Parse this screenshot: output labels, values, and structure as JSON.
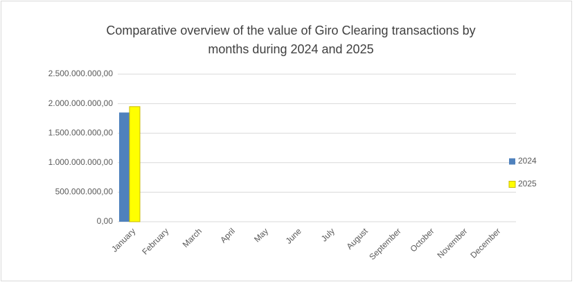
{
  "chart_data": {
    "type": "bar",
    "title": [
      "Comparative overview of the value of Giro Clearing transactions by",
      "months during 2024 and 2025"
    ],
    "categories": [
      "January",
      "February",
      "March",
      "April",
      "May",
      "June",
      "July",
      "August",
      "September",
      "October",
      "November",
      "December"
    ],
    "series": [
      {
        "name": "2024",
        "color": "#4f81bd",
        "values": [
          1850000000,
          null,
          null,
          null,
          null,
          null,
          null,
          null,
          null,
          null,
          null,
          null
        ]
      },
      {
        "name": "2025",
        "color": "#ffff00",
        "values": [
          1950000000,
          null,
          null,
          null,
          null,
          null,
          null,
          null,
          null,
          null,
          null,
          null
        ]
      }
    ],
    "ylim": [
      0,
      2500000000
    ],
    "yticks": [
      {
        "value": 0,
        "label": "0,00"
      },
      {
        "value": 500000000,
        "label": "500.000.000,00"
      },
      {
        "value": 1000000000,
        "label": "1.000.000.000,00"
      },
      {
        "value": 1500000000,
        "label": "1.500.000.000,00"
      },
      {
        "value": 2000000000,
        "label": "2.000.000.000,00"
      },
      {
        "value": 2500000000,
        "label": "2.500.000.000,00"
      }
    ],
    "grid": true,
    "legend": "right"
  }
}
